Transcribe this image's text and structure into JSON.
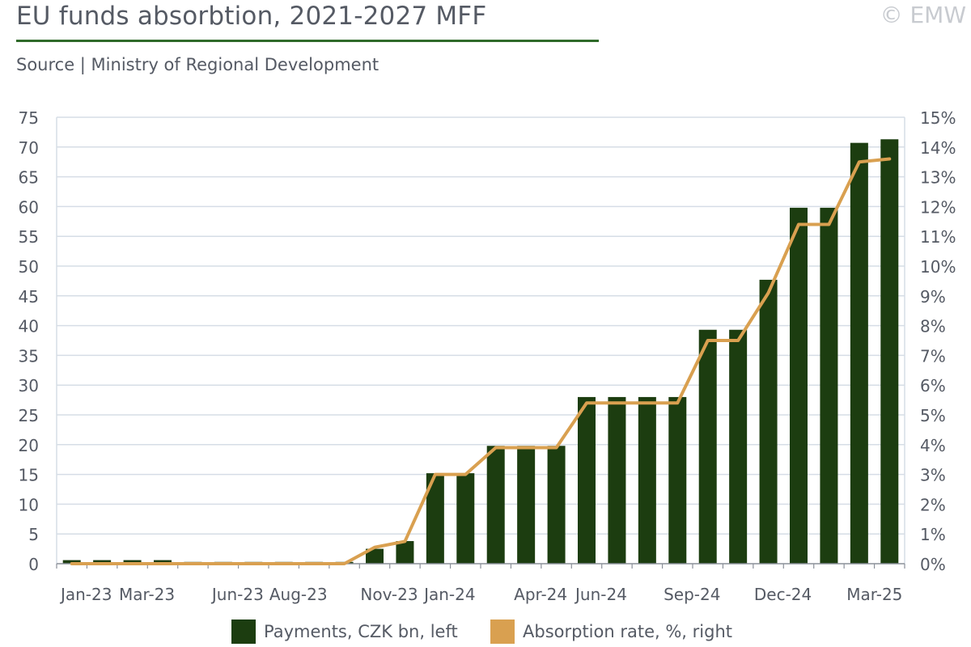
{
  "header": {
    "title": "EU funds absorbtion, 2021-2027 MFF",
    "source": "Source | Ministry of Regional Development",
    "copyright": "© EMW"
  },
  "legend": {
    "payments_label": "Payments, CZK bn, left",
    "absorption_label": "Absorption rate, %, right"
  },
  "colors": {
    "bars": "#1c3d10",
    "line": "#d9a050",
    "grid": "#d6dde6",
    "title_rule": "#2f6a2a"
  },
  "chart_data": {
    "type": "bar",
    "x_tick_labels": [
      "Jan-23",
      "Mar-23",
      "Jun-23",
      "Aug-23",
      "Nov-23",
      "Jan-24",
      "Apr-24",
      "Jun-24",
      "Sep-24",
      "Dec-24",
      "Mar-25"
    ],
    "series": [
      {
        "name": "Payments, CZK bn, left",
        "type": "bar",
        "axis": "left",
        "values": [
          0.6,
          0.6,
          0.6,
          0.6,
          0.3,
          0.3,
          0.3,
          0.3,
          0.3,
          0.3,
          2.5,
          3.8,
          15.2,
          15.2,
          19.8,
          19.8,
          19.8,
          28,
          28,
          28,
          28,
          39.3,
          39.3,
          47.7,
          59.8,
          59.8,
          70.7,
          71.3
        ]
      },
      {
        "name": "Absorption rate, %, right",
        "type": "line",
        "axis": "right",
        "values": [
          0,
          0,
          0,
          0,
          0,
          0,
          0,
          0,
          0,
          0,
          0.55,
          0.75,
          3,
          3,
          3.9,
          3.9,
          3.9,
          5.4,
          5.4,
          5.4,
          5.4,
          7.5,
          7.5,
          9.1,
          11.4,
          11.4,
          13.5,
          13.6
        ]
      }
    ],
    "y_left": {
      "min": 0,
      "max": 75,
      "ticks": [
        0,
        5,
        10,
        15,
        20,
        25,
        30,
        35,
        40,
        45,
        50,
        55,
        60,
        65,
        70,
        75
      ]
    },
    "y_right": {
      "min": 0,
      "max": 15,
      "ticks": [
        "0%",
        "1%",
        "2%",
        "3%",
        "4%",
        "5%",
        "6%",
        "7%",
        "8%",
        "9%",
        "10%",
        "11%",
        "12%",
        "13%",
        "14%",
        "15%"
      ]
    },
    "grid": true,
    "legend_position": "bottom"
  }
}
